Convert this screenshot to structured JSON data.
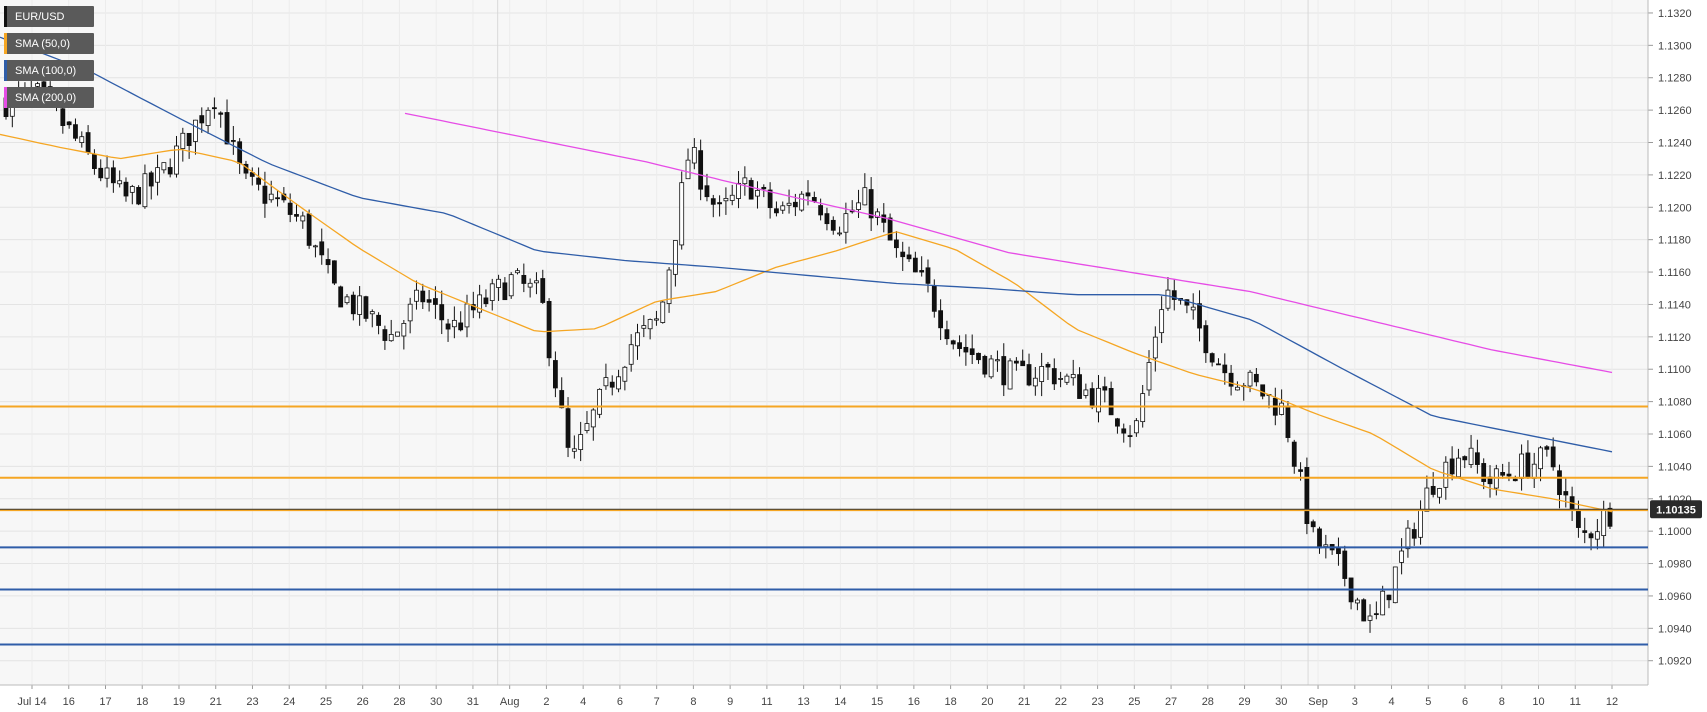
{
  "chart_data": {
    "type": "candlestick",
    "symbol": "EUR/USD",
    "indicators": [
      {
        "name": "SMA (50,0)",
        "color": "#f5a623"
      },
      {
        "name": "SMA (100,0)",
        "color": "#2f5da8"
      },
      {
        "name": "SMA (200,0)",
        "color": "#e64ce6"
      }
    ],
    "current_price": "1.10135",
    "price_tag_color": "#2b2b2b",
    "ylim": [
      1.0905,
      1.1328
    ],
    "y_ticks": [
      "1.1320",
      "1.1300",
      "1.1280",
      "1.1260",
      "1.1240",
      "1.1220",
      "1.1200",
      "1.1180",
      "1.1160",
      "1.1140",
      "1.1120",
      "1.1100",
      "1.1080",
      "1.1060",
      "1.1040",
      "1.1020",
      "1.1000",
      "1.0980",
      "1.0960",
      "1.0940",
      "1.0920"
    ],
    "x_ticks": [
      "Jul 14",
      "16",
      "17",
      "18",
      "19",
      "21",
      "23",
      "24",
      "25",
      "26",
      "28",
      "30",
      "31",
      "Aug",
      "2",
      "4",
      "6",
      "7",
      "8",
      "9",
      "11",
      "13",
      "14",
      "15",
      "16",
      "18",
      "20",
      "21",
      "22",
      "23",
      "25",
      "27",
      "28",
      "29",
      "30",
      "Sep",
      "3",
      "4",
      "5",
      "6",
      "8",
      "10",
      "11",
      "12"
    ],
    "horizontal_levels": [
      {
        "value": 1.1077,
        "color": "#f5a623"
      },
      {
        "value": 1.1033,
        "color": "#f5a623"
      },
      {
        "value": 1.1013,
        "color": "#f5a623"
      },
      {
        "value": 1.099,
        "color": "#2f5da8"
      },
      {
        "value": 1.0964,
        "color": "#2f5da8"
      },
      {
        "value": 1.093,
        "color": "#2f5da8"
      }
    ],
    "close_anchors": [
      1.1265,
      1.127,
      1.125,
      1.1225,
      1.1205,
      1.1215,
      1.124,
      1.127,
      1.1215,
      1.1205,
      1.119,
      1.115,
      1.1135,
      1.112,
      1.1145,
      1.1125,
      1.114,
      1.1155,
      1.1145,
      1.104,
      1.108,
      1.1115,
      1.113,
      1.1235,
      1.1195,
      1.1215,
      1.1195,
      1.121,
      1.119,
      1.1205,
      1.117,
      1.115,
      1.1115,
      1.1105,
      1.1095,
      1.11,
      1.109,
      1.108,
      1.106,
      1.115,
      1.113,
      1.11,
      1.109,
      1.1075,
      1.0995,
      1.0975,
      1.094,
      1.0985,
      1.103,
      1.105,
      1.103,
      1.104,
      1.1045,
      1.0995,
      1.1012
    ],
    "sma50_anchors": [
      1.1245,
      1.1237,
      1.123,
      1.1236,
      1.1228,
      1.1201,
      1.1175,
      1.1153,
      1.1138,
      1.1123,
      1.1125,
      1.1142,
      1.1148,
      1.1163,
      1.1173,
      1.1185,
      1.1174,
      1.1153,
      1.1125,
      1.111,
      1.1097,
      1.1088,
      1.1073,
      1.106,
      1.1038,
      1.1026,
      1.102,
      1.1012
    ],
    "sma100_anchors": [
      1.1305,
      1.1284,
      1.1255,
      1.1227,
      1.1206,
      1.1196,
      1.1173,
      1.1167,
      1.1163,
      1.1158,
      1.1153,
      1.115,
      1.1146,
      1.1146,
      1.113,
      1.11,
      1.1071,
      1.106,
      1.1049
    ],
    "sma200_anchors": [
      1.1258,
      1.1243,
      1.1228,
      1.121,
      1.1193,
      1.1172,
      1.116,
      1.1148,
      1.113,
      1.1112,
      1.1098
    ]
  }
}
